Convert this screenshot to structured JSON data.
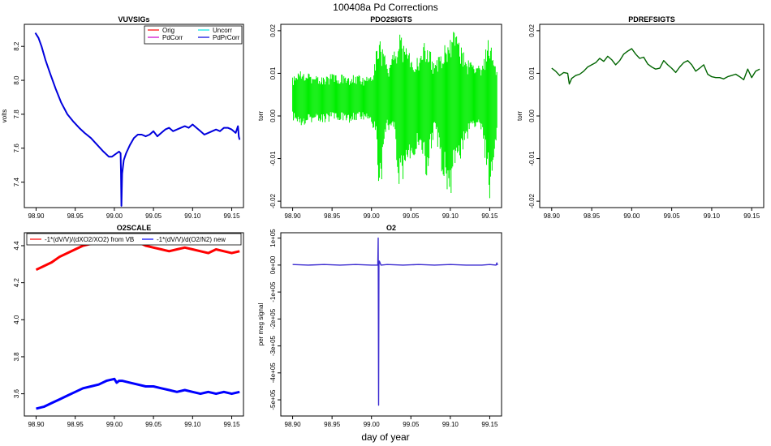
{
  "figure": {
    "title": "100408a   Pd Corrections",
    "xlabel": "day of year"
  },
  "colors": {
    "orig": "#ff0000",
    "uncorr": "#00e5e5",
    "pdcorr": "#cc00cc",
    "pdprcorr": "#0000dd",
    "pdo2": "#00ee00",
    "pdref": "#006400",
    "o2scale_vb": "#ff0000",
    "o2scale_new": "#0000ff",
    "o2": "#3a2ad0"
  },
  "chart_data": [
    {
      "id": "vuvsigs",
      "type": "line",
      "title": "VUVSIGs",
      "xlabel": "",
      "ylabel": "volts",
      "xlim": [
        98.885,
        99.165
      ],
      "ylim": [
        7.25,
        8.33
      ],
      "xticks": [
        98.9,
        98.95,
        99.0,
        99.05,
        99.1,
        99.15
      ],
      "xtick_labels": [
        "98.90",
        "98.95",
        "99.00",
        "99.05",
        "99.10",
        "99.15"
      ],
      "yticks": [
        7.4,
        7.6,
        7.8,
        8.0,
        8.2
      ],
      "ytick_labels": [
        "7.4",
        "7.6",
        "7.8",
        "8.0",
        "8.2"
      ],
      "legend": {
        "placement": "top-right",
        "entries": [
          "Orig",
          "Uncorr",
          "PdCorr",
          "PdPrCorr"
        ]
      },
      "series": [
        {
          "name": "Orig",
          "color_key": "orig",
          "x": [],
          "y": []
        },
        {
          "name": "Uncorr",
          "color_key": "uncorr",
          "x": [],
          "y": []
        },
        {
          "name": "PdCorr",
          "color_key": "pdcorr",
          "x": [],
          "y": []
        },
        {
          "name": "PdPrCorr",
          "color_key": "pdprcorr",
          "x": [
            98.899,
            98.903,
            98.907,
            98.912,
            98.918,
            98.925,
            98.932,
            98.94,
            98.947,
            98.955,
            98.962,
            98.97,
            98.978,
            98.986,
            98.993,
            98.997,
            99.0,
            99.003,
            99.006,
            99.008,
            99.0085,
            99.009,
            99.01,
            99.012,
            99.015,
            99.02,
            99.025,
            99.03,
            99.035,
            99.04,
            99.045,
            99.05,
            99.055,
            99.06,
            99.065,
            99.07,
            99.075,
            99.08,
            99.085,
            99.09,
            99.095,
            99.1,
            99.105,
            99.11,
            99.115,
            99.12,
            99.125,
            99.13,
            99.135,
            99.14,
            99.145,
            99.15,
            99.155,
            99.158,
            99.159,
            99.16
          ],
          "y": [
            8.28,
            8.25,
            8.2,
            8.12,
            8.04,
            7.95,
            7.87,
            7.8,
            7.76,
            7.72,
            7.69,
            7.66,
            7.62,
            7.58,
            7.55,
            7.55,
            7.56,
            7.57,
            7.58,
            7.57,
            7.45,
            7.26,
            7.45,
            7.53,
            7.57,
            7.62,
            7.66,
            7.68,
            7.68,
            7.67,
            7.68,
            7.7,
            7.67,
            7.69,
            7.71,
            7.72,
            7.7,
            7.71,
            7.72,
            7.73,
            7.72,
            7.74,
            7.72,
            7.7,
            7.68,
            7.69,
            7.7,
            7.71,
            7.7,
            7.72,
            7.72,
            7.71,
            7.69,
            7.73,
            7.67,
            7.65
          ]
        }
      ]
    },
    {
      "id": "pdo2sigts",
      "type": "line",
      "title": "PDO2SIGTS",
      "xlabel": "",
      "ylabel": "torr",
      "xlim": [
        98.885,
        99.165
      ],
      "ylim": [
        -0.0215,
        0.0215
      ],
      "xticks": [
        98.9,
        98.95,
        99.0,
        99.05,
        99.1,
        99.15
      ],
      "xtick_labels": [
        "98.90",
        "98.95",
        "99.00",
        "99.05",
        "99.10",
        "99.15"
      ],
      "yticks": [
        -0.02,
        -0.01,
        0.0,
        0.01,
        0.02
      ],
      "ytick_labels": [
        "-0.02",
        "-0.01",
        "0.00",
        "0.01",
        "0.02"
      ],
      "series": [
        {
          "color_key": "pdo2",
          "x": [
            98.9,
            98.91,
            98.92,
            98.93,
            98.94,
            98.95,
            98.96,
            98.97,
            98.98,
            98.99,
            99.0,
            99.005,
            99.01,
            99.02,
            99.03,
            99.035,
            99.04,
            99.05,
            99.06,
            99.07,
            99.08,
            99.09,
            99.1,
            99.11,
            99.12,
            99.13,
            99.14,
            99.15,
            99.16
          ],
          "ymin": [
            -0.001,
            -0.003,
            -0.002,
            -0.001,
            -0.002,
            -0.001,
            -0.001,
            -0.002,
            -0.001,
            -0.001,
            -0.002,
            -0.004,
            -0.02,
            -0.003,
            -0.005,
            -0.02,
            -0.015,
            -0.01,
            -0.008,
            -0.015,
            -0.004,
            -0.015,
            -0.02,
            -0.012,
            -0.006,
            -0.004,
            -0.004,
            -0.02,
            -0.003
          ],
          "ymax": [
            0.009,
            0.011,
            0.01,
            0.01,
            0.009,
            0.01,
            0.01,
            0.009,
            0.01,
            0.009,
            0.01,
            0.014,
            0.02,
            0.012,
            0.016,
            0.02,
            0.019,
            0.016,
            0.014,
            0.019,
            0.012,
            0.016,
            0.02,
            0.02,
            0.014,
            0.012,
            0.012,
            0.02,
            0.011
          ]
        }
      ]
    },
    {
      "id": "pdrefsigts",
      "type": "line",
      "title": "PDREFSIGTS",
      "xlabel": "",
      "ylabel": "torr",
      "xlim": [
        98.885,
        99.165
      ],
      "ylim": [
        -0.0215,
        0.0215
      ],
      "xticks": [
        98.9,
        98.95,
        99.0,
        99.05,
        99.1,
        99.15
      ],
      "xtick_labels": [
        "98.90",
        "98.95",
        "99.00",
        "99.05",
        "99.10",
        "99.15"
      ],
      "yticks": [
        -0.02,
        -0.01,
        0.0,
        0.01,
        0.02
      ],
      "ytick_labels": [
        "-0.02",
        "-0.01",
        "0.00",
        "0.01",
        "0.02"
      ],
      "series": [
        {
          "color_key": "pdref",
          "x": [
            98.9,
            98.905,
            98.91,
            98.915,
            98.92,
            98.922,
            98.925,
            98.93,
            98.935,
            98.94,
            98.945,
            98.95,
            98.955,
            98.96,
            98.965,
            98.97,
            98.975,
            98.98,
            98.985,
            98.99,
            98.995,
            99.0,
            99.005,
            99.01,
            99.015,
            99.02,
            99.025,
            99.03,
            99.035,
            99.04,
            99.045,
            99.05,
            99.055,
            99.06,
            99.065,
            99.07,
            99.075,
            99.08,
            99.085,
            99.09,
            99.095,
            99.1,
            99.105,
            99.11,
            99.115,
            99.12,
            99.125,
            99.13,
            99.135,
            99.14,
            99.145,
            99.15,
            99.155,
            99.16
          ],
          "y": [
            0.0112,
            0.0105,
            0.0095,
            0.0102,
            0.01,
            0.0075,
            0.0088,
            0.0095,
            0.0098,
            0.0105,
            0.0115,
            0.012,
            0.0125,
            0.0135,
            0.0128,
            0.014,
            0.0132,
            0.012,
            0.013,
            0.0145,
            0.0152,
            0.0158,
            0.0145,
            0.0135,
            0.0138,
            0.0122,
            0.0115,
            0.011,
            0.0112,
            0.013,
            0.012,
            0.0112,
            0.0102,
            0.0115,
            0.0125,
            0.013,
            0.012,
            0.0105,
            0.0112,
            0.012,
            0.0098,
            0.0092,
            0.009,
            0.009,
            0.0087,
            0.0092,
            0.0095,
            0.0098,
            0.0092,
            0.0085,
            0.011,
            0.009,
            0.0105,
            0.011
          ]
        }
      ]
    },
    {
      "id": "o2scale",
      "type": "line",
      "title": "O2SCALE",
      "xlabel": "",
      "ylabel": "",
      "xlim": [
        98.885,
        99.165
      ],
      "ylim": [
        3.48,
        4.47
      ],
      "xticks": [
        98.9,
        98.95,
        99.0,
        99.05,
        99.1,
        99.15
      ],
      "xtick_labels": [
        "98.90",
        "98.95",
        "99.00",
        "99.05",
        "99.10",
        "99.15"
      ],
      "yticks": [
        3.6,
        3.8,
        4.0,
        4.2,
        4.4
      ],
      "ytick_labels": [
        "3.6",
        "3.8",
        "4.0",
        "4.2",
        "4.4"
      ],
      "legend": {
        "placement": "top",
        "entries": [
          "-1*(dV/V)/(dXO2/XO2) from VB",
          "-1*(dV/V)/d(O2/N2) new"
        ]
      },
      "series": [
        {
          "name": "-1*(dV/V)/(dXO2/XO2) from VB",
          "color_key": "o2scale_vb",
          "x": [
            98.9,
            98.91,
            98.92,
            98.93,
            98.94,
            98.95,
            98.96,
            98.97,
            98.98,
            98.99,
            99.0,
            99.01,
            99.02,
            99.03,
            99.04,
            99.05,
            99.06,
            99.07,
            99.08,
            99.09,
            99.1,
            99.11,
            99.12,
            99.13,
            99.14,
            99.15,
            99.16
          ],
          "y": [
            4.27,
            4.29,
            4.31,
            4.34,
            4.36,
            4.38,
            4.4,
            4.41,
            4.43,
            4.45,
            4.46,
            4.45,
            4.43,
            4.42,
            4.4,
            4.39,
            4.38,
            4.37,
            4.38,
            4.39,
            4.38,
            4.37,
            4.36,
            4.38,
            4.37,
            4.36,
            4.37
          ]
        },
        {
          "name": "-1*(dV/V)/d(O2/N2) new",
          "color_key": "o2scale_new",
          "x": [
            98.9,
            98.91,
            98.92,
            98.93,
            98.94,
            98.95,
            98.96,
            98.97,
            98.98,
            98.99,
            99.0,
            99.003,
            99.006,
            99.01,
            99.02,
            99.03,
            99.04,
            99.05,
            99.06,
            99.07,
            99.08,
            99.09,
            99.1,
            99.11,
            99.12,
            99.13,
            99.14,
            99.15,
            99.16
          ],
          "y": [
            3.52,
            3.53,
            3.55,
            3.57,
            3.59,
            3.61,
            3.63,
            3.64,
            3.65,
            3.67,
            3.68,
            3.66,
            3.67,
            3.67,
            3.66,
            3.65,
            3.64,
            3.64,
            3.63,
            3.62,
            3.61,
            3.62,
            3.61,
            3.6,
            3.61,
            3.6,
            3.61,
            3.6,
            3.61
          ]
        }
      ]
    },
    {
      "id": "o2",
      "type": "line",
      "title": "O2",
      "xlabel": "",
      "ylabel": "per meg signal",
      "xlim": [
        98.885,
        99.165
      ],
      "ylim": [
        -560000,
        120000
      ],
      "xticks": [
        98.9,
        98.95,
        99.0,
        99.05,
        99.1,
        99.15
      ],
      "xtick_labels": [
        "98.90",
        "98.95",
        "99.00",
        "99.05",
        "99.10",
        "99.15"
      ],
      "yticks": [
        100000,
        0,
        -100000,
        -200000,
        -300000,
        -400000,
        -500000
      ],
      "ytick_labels": [
        "1e+05",
        "0e+00",
        "-1e+05",
        "-2e+05",
        "-3e+05",
        "-4e+05",
        "-5e+05"
      ],
      "series": [
        {
          "color_key": "o2",
          "x": [
            98.9,
            98.92,
            98.94,
            98.96,
            98.98,
            99.0,
            99.005,
            99.008,
            99.0085,
            99.009,
            99.0095,
            99.01,
            99.012,
            99.02,
            99.04,
            99.06,
            99.08,
            99.1,
            99.12,
            99.14,
            99.15,
            99.158,
            99.159,
            99.16
          ],
          "y": [
            2000,
            0,
            2000,
            0,
            2000,
            0,
            0,
            0,
            100000,
            -520000,
            0,
            15000,
            0,
            2000,
            0,
            2000,
            0,
            2000,
            0,
            0,
            2000,
            0,
            8000,
            0
          ]
        }
      ]
    }
  ]
}
